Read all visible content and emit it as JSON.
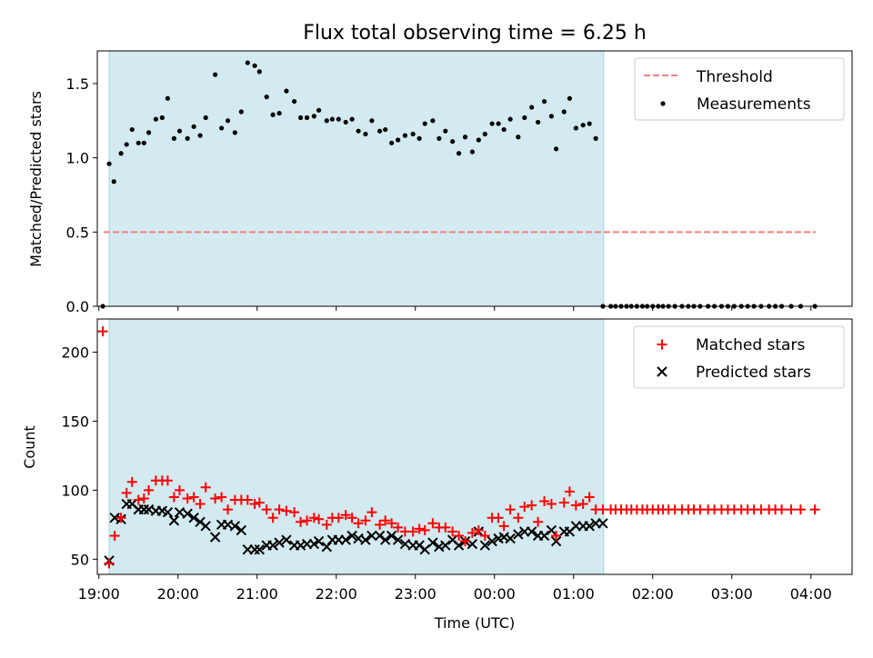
{
  "chart_data": [
    {
      "type": "scatter",
      "title": "Flux total observing time = 6.25 h",
      "ylabel": "Matched/Predicted stars",
      "ylim": [
        0,
        1.72
      ],
      "yticks": [
        0.0,
        0.5,
        1.0,
        1.5
      ],
      "ytick_labels": [
        "0.0",
        "0.5",
        "1.0",
        "1.5"
      ],
      "xlim": [
        18.98,
        28.52
      ],
      "shaded_interval": [
        19.13,
        25.38
      ],
      "threshold": {
        "name": "Threshold",
        "value": 0.5,
        "x_range": [
          19.06,
          28.06
        ],
        "color": "#f08080"
      },
      "legend": {
        "placement": "top-right",
        "entries": [
          "Threshold",
          "Measurements"
        ]
      },
      "measurements": {
        "name": "Measurements",
        "color": "#000000",
        "x": [
          19.05,
          19.13,
          19.19,
          19.28,
          19.35,
          19.42,
          19.5,
          19.57,
          19.63,
          19.72,
          19.8,
          19.87,
          19.95,
          20.02,
          20.12,
          20.2,
          20.28,
          20.35,
          20.47,
          20.55,
          20.63,
          20.72,
          20.8,
          20.88,
          20.97,
          21.03,
          21.12,
          21.2,
          21.28,
          21.37,
          21.47,
          21.55,
          21.63,
          21.72,
          21.78,
          21.88,
          21.95,
          22.03,
          22.12,
          22.2,
          22.28,
          22.37,
          22.45,
          22.55,
          22.62,
          22.7,
          22.78,
          22.87,
          22.97,
          23.05,
          23.12,
          23.22,
          23.3,
          23.38,
          23.47,
          23.55,
          23.63,
          23.72,
          23.8,
          23.88,
          23.97,
          24.05,
          24.12,
          24.2,
          24.3,
          24.38,
          24.47,
          24.55,
          24.63,
          24.72,
          24.78,
          24.88,
          24.95,
          25.03,
          25.12,
          25.2,
          25.28,
          25.37,
          25.47,
          25.53,
          25.6,
          25.67,
          25.73,
          25.8,
          25.87,
          25.93,
          26.0,
          26.07,
          26.13,
          26.2,
          26.28,
          26.37,
          26.45,
          26.52,
          26.6,
          26.7,
          26.78,
          26.87,
          26.95,
          27.03,
          27.12,
          27.2,
          27.28,
          27.37,
          27.47,
          27.55,
          27.63,
          27.75,
          27.87,
          28.05
        ],
        "y": [
          0.0,
          0.96,
          0.84,
          1.03,
          1.09,
          1.19,
          1.1,
          1.1,
          1.17,
          1.26,
          1.27,
          1.4,
          1.13,
          1.18,
          1.13,
          1.21,
          1.15,
          1.27,
          1.56,
          1.2,
          1.25,
          1.17,
          1.31,
          1.64,
          1.62,
          1.58,
          1.41,
          1.29,
          1.3,
          1.45,
          1.38,
          1.27,
          1.27,
          1.28,
          1.32,
          1.25,
          1.26,
          1.26,
          1.24,
          1.26,
          1.18,
          1.16,
          1.25,
          1.18,
          1.19,
          1.1,
          1.12,
          1.15,
          1.16,
          1.13,
          1.23,
          1.25,
          1.13,
          1.18,
          1.11,
          1.03,
          1.14,
          1.04,
          1.12,
          1.16,
          1.23,
          1.23,
          1.19,
          1.26,
          1.14,
          1.27,
          1.34,
          1.24,
          1.38,
          1.28,
          1.06,
          1.31,
          1.4,
          1.2,
          1.22,
          1.23,
          1.13,
          0.0,
          0.0,
          0.0,
          0.0,
          0.0,
          0.0,
          0.0,
          0.0,
          0.0,
          0.0,
          0.0,
          0.0,
          0.0,
          0.0,
          0.0,
          0.0,
          0.0,
          0.0,
          0.0,
          0.0,
          0.0,
          0.0,
          0.0,
          0.0,
          0.0,
          0.0,
          0.0,
          0.0,
          0.0,
          0.0,
          0.0,
          0.0,
          0.0
        ]
      }
    },
    {
      "type": "scatter",
      "xlabel": "Time (UTC)",
      "ylabel": "Count",
      "ylim": [
        39,
        224
      ],
      "yticks": [
        50,
        100,
        150,
        200
      ],
      "ytick_labels": [
        "50",
        "100",
        "150",
        "200"
      ],
      "xlim": [
        18.98,
        28.52
      ],
      "xticks": [
        19,
        20,
        21,
        22,
        23,
        24,
        25,
        26,
        27,
        28
      ],
      "xtick_labels": [
        "19:00",
        "20:00",
        "21:00",
        "22:00",
        "23:00",
        "00:00",
        "01:00",
        "02:00",
        "03:00",
        "04:00"
      ],
      "shaded_interval": [
        19.13,
        25.38
      ],
      "legend": {
        "placement": "top-right",
        "entries": [
          "Matched stars",
          "Predicted stars"
        ]
      },
      "matched": {
        "name": "Matched stars",
        "color": "#ff0000",
        "x": [
          19.05,
          19.13,
          19.2,
          19.28,
          19.35,
          19.42,
          19.5,
          19.57,
          19.63,
          19.72,
          19.8,
          19.87,
          19.95,
          20.02,
          20.12,
          20.2,
          20.28,
          20.35,
          20.47,
          20.55,
          20.63,
          20.72,
          20.8,
          20.88,
          20.97,
          21.03,
          21.12,
          21.2,
          21.28,
          21.37,
          21.47,
          21.55,
          21.63,
          21.72,
          21.78,
          21.88,
          21.95,
          22.03,
          22.12,
          22.2,
          22.28,
          22.37,
          22.45,
          22.55,
          22.62,
          22.7,
          22.78,
          22.87,
          22.97,
          23.05,
          23.12,
          23.22,
          23.3,
          23.38,
          23.47,
          23.55,
          23.63,
          23.72,
          23.8,
          23.88,
          23.97,
          24.05,
          24.12,
          24.2,
          24.3,
          24.38,
          24.47,
          24.55,
          24.63,
          24.72,
          24.78,
          24.88,
          24.95,
          25.03,
          25.12,
          25.2,
          25.28,
          25.37,
          25.47,
          25.53,
          25.6,
          25.67,
          25.73,
          25.8,
          25.87,
          25.93,
          26.0,
          26.07,
          26.13,
          26.2,
          26.28,
          26.37,
          26.45,
          26.52,
          26.6,
          26.7,
          26.78,
          26.87,
          26.95,
          27.03,
          27.12,
          27.2,
          27.28,
          27.37,
          27.47,
          27.55,
          27.63,
          27.75,
          27.87,
          28.05
        ],
        "y": [
          215,
          47,
          67,
          80,
          98,
          106,
          93,
          94,
          100,
          107,
          107,
          107,
          95,
          100,
          94,
          95,
          90,
          102,
          94,
          95,
          86,
          93,
          93,
          93,
          90,
          91,
          86,
          80,
          86,
          85,
          84,
          77,
          78,
          80,
          79,
          75,
          80,
          80,
          82,
          80,
          76,
          78,
          84,
          75,
          78,
          76,
          73,
          70,
          70,
          72,
          71,
          76,
          73,
          73,
          70,
          67,
          63,
          69,
          71,
          67,
          80,
          80,
          74,
          86,
          80,
          88,
          89,
          77,
          92,
          90,
          67,
          91,
          99,
          89,
          90,
          95,
          86,
          86,
          86,
          86,
          86,
          86,
          86,
          86,
          86,
          86,
          86,
          86,
          86,
          86,
          86,
          86,
          86,
          86,
          86,
          86,
          86,
          86,
          86,
          86,
          86,
          86,
          86,
          86,
          86,
          86,
          86,
          86,
          86,
          86
        ]
      },
      "predicted": {
        "name": "Predicted stars",
        "color": "#000000",
        "x": [
          19.13,
          19.2,
          19.28,
          19.35,
          19.42,
          19.5,
          19.57,
          19.63,
          19.72,
          19.8,
          19.87,
          19.95,
          20.02,
          20.12,
          20.2,
          20.28,
          20.35,
          20.47,
          20.55,
          20.63,
          20.72,
          20.8,
          20.88,
          20.97,
          21.03,
          21.12,
          21.2,
          21.28,
          21.37,
          21.47,
          21.55,
          21.63,
          21.72,
          21.78,
          21.88,
          21.95,
          22.03,
          22.12,
          22.2,
          22.28,
          22.37,
          22.45,
          22.55,
          22.62,
          22.7,
          22.78,
          22.87,
          22.97,
          23.05,
          23.12,
          23.22,
          23.3,
          23.38,
          23.47,
          23.55,
          23.63,
          23.72,
          23.8,
          23.88,
          23.97,
          24.05,
          24.12,
          24.2,
          24.3,
          24.38,
          24.47,
          24.55,
          24.63,
          24.72,
          24.78,
          24.88,
          24.95,
          25.03,
          25.12,
          25.2,
          25.28,
          25.37
        ],
        "y": [
          49,
          80,
          79,
          90,
          90,
          86,
          86,
          86,
          85,
          85,
          84,
          78,
          84,
          83,
          80,
          77,
          74,
          66,
          75,
          75,
          74,
          71,
          57,
          57,
          57,
          60,
          60,
          62,
          64,
          60,
          60,
          61,
          61,
          63,
          59,
          64,
          64,
          64,
          67,
          65,
          64,
          67,
          67,
          64,
          67,
          64,
          61,
          60,
          60,
          57,
          62,
          59,
          60,
          64,
          60,
          63,
          61,
          70,
          60,
          63,
          65,
          66,
          65,
          68,
          70,
          70,
          67,
          67,
          71,
          63,
          70,
          70,
          74,
          74,
          74,
          76,
          76
        ]
      }
    }
  ]
}
